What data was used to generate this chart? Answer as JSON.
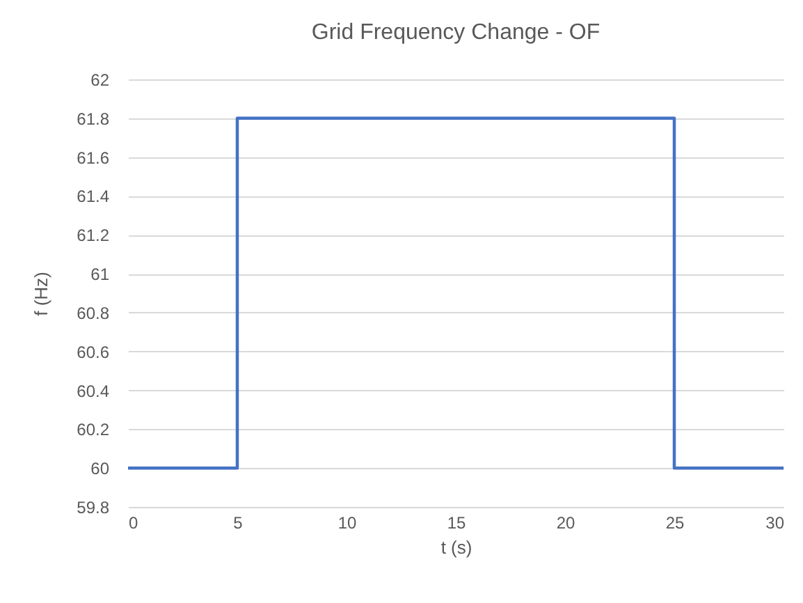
{
  "chart_data": {
    "type": "line",
    "title": "Grid Frequency Change - OF",
    "xlabel": "t (s)",
    "ylabel": "f (Hz)",
    "x": [
      0,
      5,
      5,
      25,
      25,
      30
    ],
    "series": [
      {
        "color": "#4472c4",
        "values": [
          60,
          60,
          61.8,
          61.8,
          60,
          60
        ]
      }
    ],
    "xlim": [
      0,
      30
    ],
    "xticks": [
      0,
      5,
      10,
      15,
      20,
      25,
      30
    ],
    "ylim": [
      59.8,
      62
    ],
    "yticks": [
      59.8,
      60,
      60.2,
      60.4,
      60.6,
      60.8,
      61,
      61.2,
      61.4,
      61.6,
      61.8,
      62
    ],
    "grid": "y",
    "marker": "none",
    "line_style": "solid"
  }
}
